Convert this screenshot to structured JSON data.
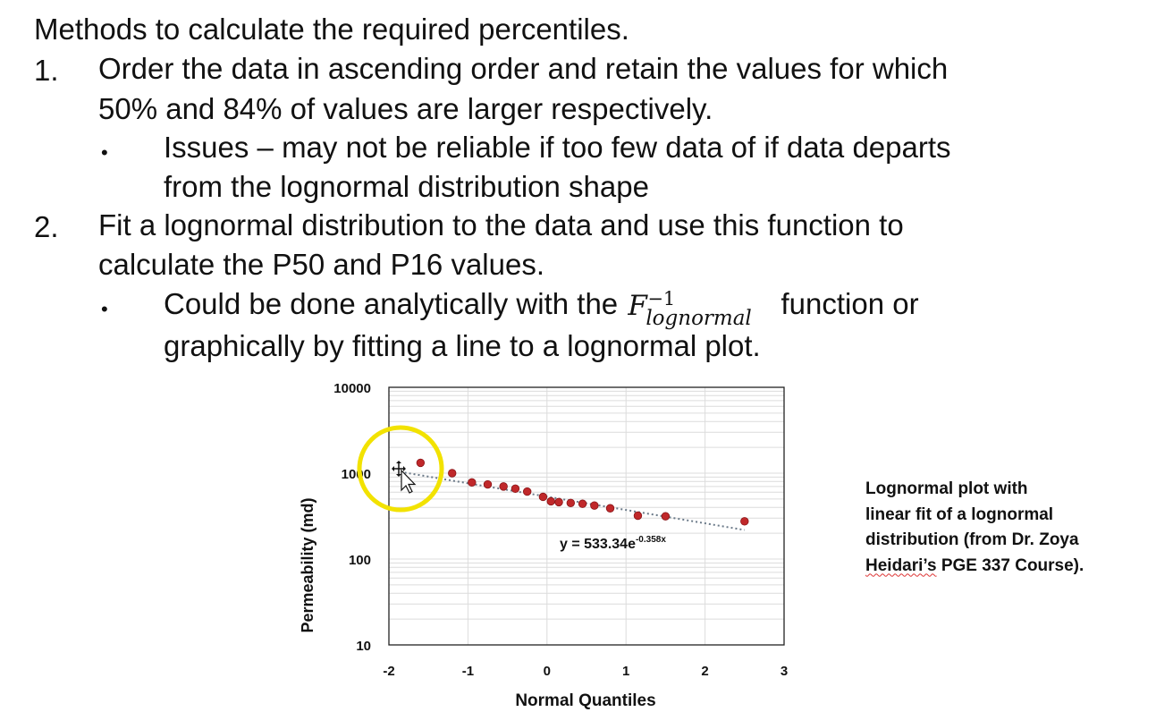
{
  "slide": {
    "title": "Methods to calculate the required percentiles.",
    "items": [
      {
        "number": "1.",
        "line1": "Order the data in ascending order and retain the values for which",
        "line2": "50% and 84% of values are larger respectively.",
        "sub": {
          "line1": "Issues – may not be reliable if too few data of if data departs",
          "line2": "from the lognormal distribution shape"
        }
      },
      {
        "number": "2.",
        "line1": "Fit a lognormal distribution to the data and use this function to",
        "line2": "calculate the P50 and P16 values.",
        "sub": {
          "pre": "Could be done analytically with the ",
          "math_base": "F",
          "math_sup": "−1",
          "math_sub": "lognormal",
          "post": " function or",
          "line2": "graphically by fitting a line to a lognormal plot."
        }
      }
    ],
    "caption": {
      "line1": "Lognormal plot with",
      "line2": "linear fit of a lognormal",
      "line3": "distribution (from Dr. Zoya",
      "line4_underlined": "Heidari’s",
      "line4_rest": " PGE 337 Course)."
    }
  },
  "chart_data": {
    "type": "scatter",
    "xlabel": "Normal Quantiles",
    "ylabel": "Permeability (md)",
    "xlim": [
      -2,
      3
    ],
    "ylim": [
      10,
      10000
    ],
    "yscale": "log",
    "x_ticks": [
      "-2",
      "-1",
      "0",
      "1",
      "2",
      "3"
    ],
    "y_ticks": [
      "10",
      "100",
      "1000",
      "10000"
    ],
    "grid": true,
    "equation": {
      "text": "y = 533.34e",
      "exponent": "-0.358x"
    },
    "fit": {
      "a": 533.34,
      "b": -0.358,
      "x_range": [
        -1.8,
        2.5
      ]
    },
    "marker_color": "#c0282a",
    "points": [
      {
        "x": -1.6,
        "y": 1320
      },
      {
        "x": -1.2,
        "y": 1000
      },
      {
        "x": -0.95,
        "y": 780
      },
      {
        "x": -0.75,
        "y": 740
      },
      {
        "x": -0.55,
        "y": 700
      },
      {
        "x": -0.4,
        "y": 660
      },
      {
        "x": -0.25,
        "y": 610
      },
      {
        "x": -0.05,
        "y": 530
      },
      {
        "x": 0.05,
        "y": 470
      },
      {
        "x": 0.15,
        "y": 460
      },
      {
        "x": 0.3,
        "y": 450
      },
      {
        "x": 0.45,
        "y": 440
      },
      {
        "x": 0.6,
        "y": 420
      },
      {
        "x": 0.8,
        "y": 390
      },
      {
        "x": 1.15,
        "y": 320
      },
      {
        "x": 1.5,
        "y": 315
      },
      {
        "x": 2.5,
        "y": 275
      }
    ],
    "annotation": {
      "shape": "circle",
      "color": "#f2e200"
    }
  }
}
